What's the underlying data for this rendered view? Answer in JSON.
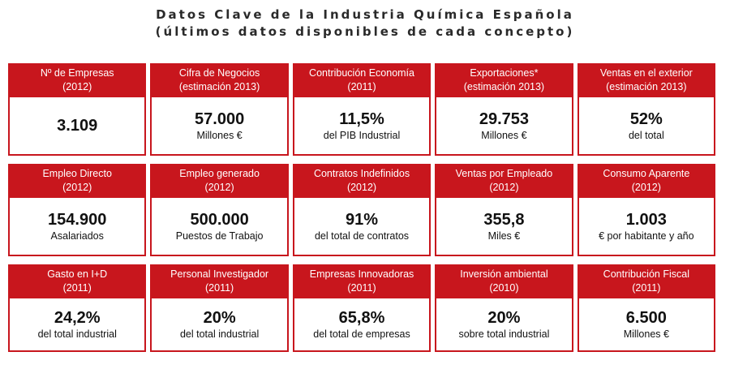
{
  "title_line1": "Datos Clave de la Industria Química Española",
  "title_line2": "(últimos datos disponibles de cada concepto)",
  "rows": [
    [
      {
        "label": "Nº de Empresas",
        "period": "(2012)",
        "value": "3.109",
        "unit": ""
      },
      {
        "label": "Cifra de Negocios",
        "period": "(estimación 2013)",
        "value": "57.000",
        "unit": "Millones €"
      },
      {
        "label": "Contribución Economía",
        "period": "(2011)",
        "value": "11,5%",
        "unit": "del PIB Industrial"
      },
      {
        "label": "Exportaciones*",
        "period": "(estimación 2013)",
        "value": "29.753",
        "unit": "Millones €"
      },
      {
        "label": "Ventas en el exterior",
        "period": "(estimación 2013)",
        "value": "52%",
        "unit": "del total"
      }
    ],
    [
      {
        "label": "Empleo Directo",
        "period": "(2012)",
        "value": "154.900",
        "unit": "Asalariados"
      },
      {
        "label": "Empleo generado",
        "period": "(2012)",
        "value": "500.000",
        "unit": "Puestos de Trabajo"
      },
      {
        "label": "Contratos Indefinidos",
        "period": "(2012)",
        "value": "91%",
        "unit": "del total de contratos"
      },
      {
        "label": "Ventas por Empleado",
        "period": "(2012)",
        "value": "355,8",
        "unit": "Miles €"
      },
      {
        "label": "Consumo Aparente",
        "period": "(2012)",
        "value": "1.003",
        "unit": "€ por habitante y año"
      }
    ],
    [
      {
        "label": "Gasto en I+D",
        "period": "(2011)",
        "value": "24,2%",
        "unit": "del total industrial"
      },
      {
        "label": "Personal Investigador",
        "period": "(2011)",
        "value": "20%",
        "unit": "del total industrial"
      },
      {
        "label": "Empresas Innovadoras",
        "period": "(2011)",
        "value": "65,8%",
        "unit": "del total de empresas"
      },
      {
        "label": "Inversión ambiental",
        "period": "(2010)",
        "value": "20%",
        "unit": "sobre total industrial"
      },
      {
        "label": "Contribución Fiscal",
        "period": "(2011)",
        "value": "6.500",
        "unit": "Millones €"
      }
    ]
  ],
  "colors": {
    "header_bg": "#c8161d",
    "header_text": "#ffffff"
  }
}
